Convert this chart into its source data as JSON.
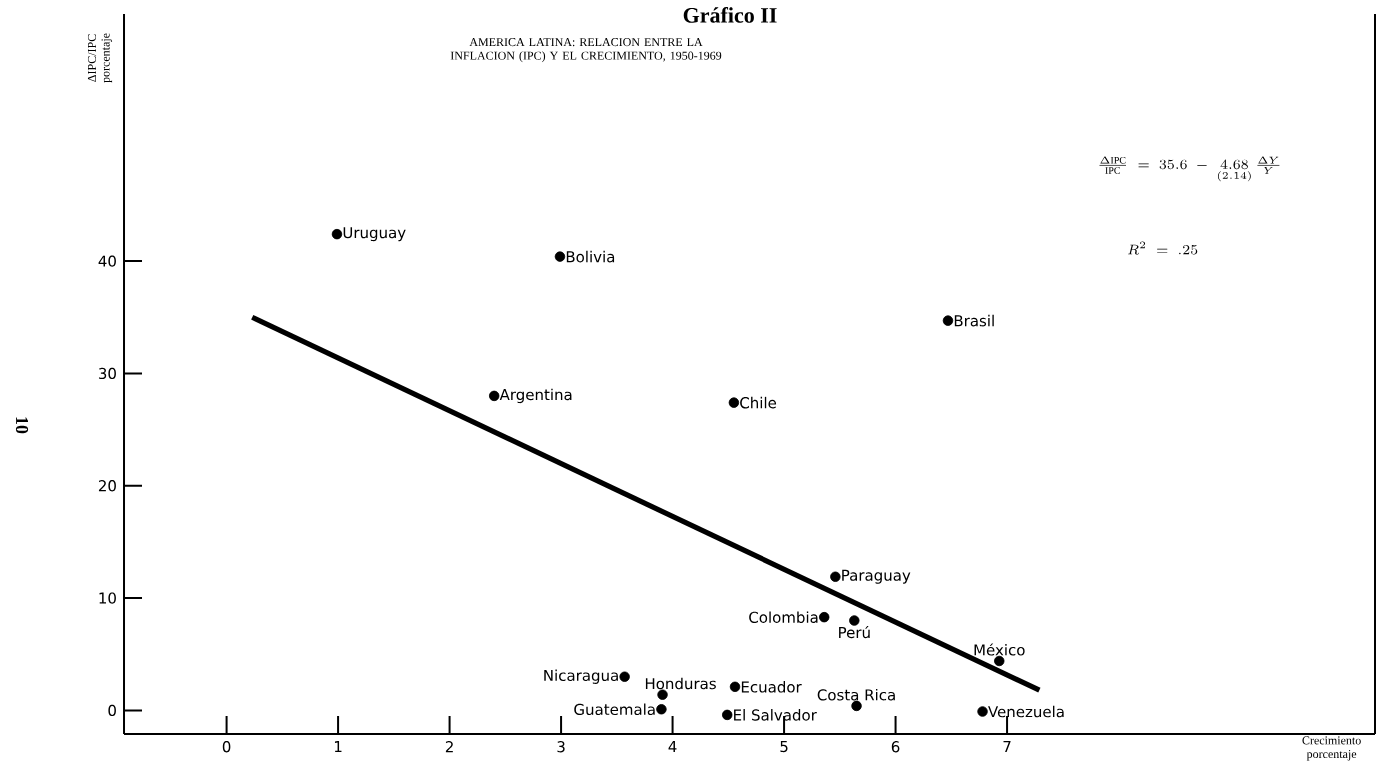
{
  "chart_data": {
    "type": "scatter",
    "title": "Gráfico II",
    "subtitle": "AMERICA LATINA: RELACION ENTRE LA INFLACION (IPC) Y EL CRECIMIENTO, 1950-1969",
    "xlabel": "Crecimiento porcentaje",
    "ylabel": "ΔIPC/IPC porcentaje",
    "xlim": [
      -0.92,
      10.3
    ],
    "ylim": [
      -2.1,
      62
    ],
    "xticks": [
      0,
      1,
      2,
      3,
      4,
      5,
      6,
      7
    ],
    "yticks": [
      0,
      10,
      20,
      30,
      40
    ],
    "annotations": [
      "\\frac{\\Delta\\mathrm{IPC}}{\\mathrm{IPC}} \\;=\\; 35.6 \\;-\\; \\underset{(2.14)}{4.68}\\,\\frac{\\Delta Y}{Y}",
      "R^2 \\;=\\; .25",
      "10"
    ],
    "series": [
      {
        "name": "Uruguay",
        "color": "#000000",
        "x": [
          0.99
        ],
        "values": [
          42.4
        ]
      },
      {
        "name": "Bolivia",
        "color": "#000000",
        "x": [
          2.99
        ],
        "values": [
          40.4
        ]
      },
      {
        "name": "Argentina",
        "color": "#000000",
        "x": [
          2.4
        ],
        "values": [
          28.0
        ]
      },
      {
        "name": "Chile",
        "color": "#000000",
        "x": [
          4.55
        ],
        "values": [
          27.4
        ]
      },
      {
        "name": "Brasil",
        "color": "#000000",
        "x": [
          6.47
        ],
        "values": [
          34.7
        ]
      },
      {
        "name": "Paraguay",
        "color": "#000000",
        "x": [
          5.46
        ],
        "values": [
          11.9
        ]
      },
      {
        "name": "Colombia",
        "color": "#000000",
        "x": [
          5.36
        ],
        "values": [
          8.3
        ]
      },
      {
        "name": "Perú",
        "color": "#000000",
        "x": [
          5.63
        ],
        "values": [
          8.0
        ]
      },
      {
        "name": "México",
        "color": "#000000",
        "x": [
          6.93
        ],
        "values": [
          4.4
        ]
      },
      {
        "name": "Nicaragua",
        "color": "#000000",
        "x": [
          3.57
        ],
        "values": [
          3.0
        ]
      },
      {
        "name": "Honduras",
        "color": "#000000",
        "x": [
          3.91
        ],
        "values": [
          1.4
        ]
      },
      {
        "name": "Ecuador",
        "color": "#000000",
        "x": [
          4.56
        ],
        "values": [
          2.1
        ]
      },
      {
        "name": "Guatemala",
        "color": "#000000",
        "x": [
          3.9
        ],
        "values": [
          0.1
        ]
      },
      {
        "name": "El Salvador",
        "color": "#000000",
        "x": [
          4.49
        ],
        "values": [
          -0.4
        ]
      },
      {
        "name": "Costa Rica",
        "color": "#000000",
        "x": [
          5.65
        ],
        "values": [
          0.4
        ]
      },
      {
        "name": "Venezuela",
        "color": "#000000",
        "x": [
          6.78
        ],
        "values": [
          -0.1
        ]
      },
      {
        "type": "line",
        "color": "#000000",
        "x": [
          0.23,
          7.29
        ],
        "values": [
          35.0,
          1.8
        ]
      }
    ]
  }
}
